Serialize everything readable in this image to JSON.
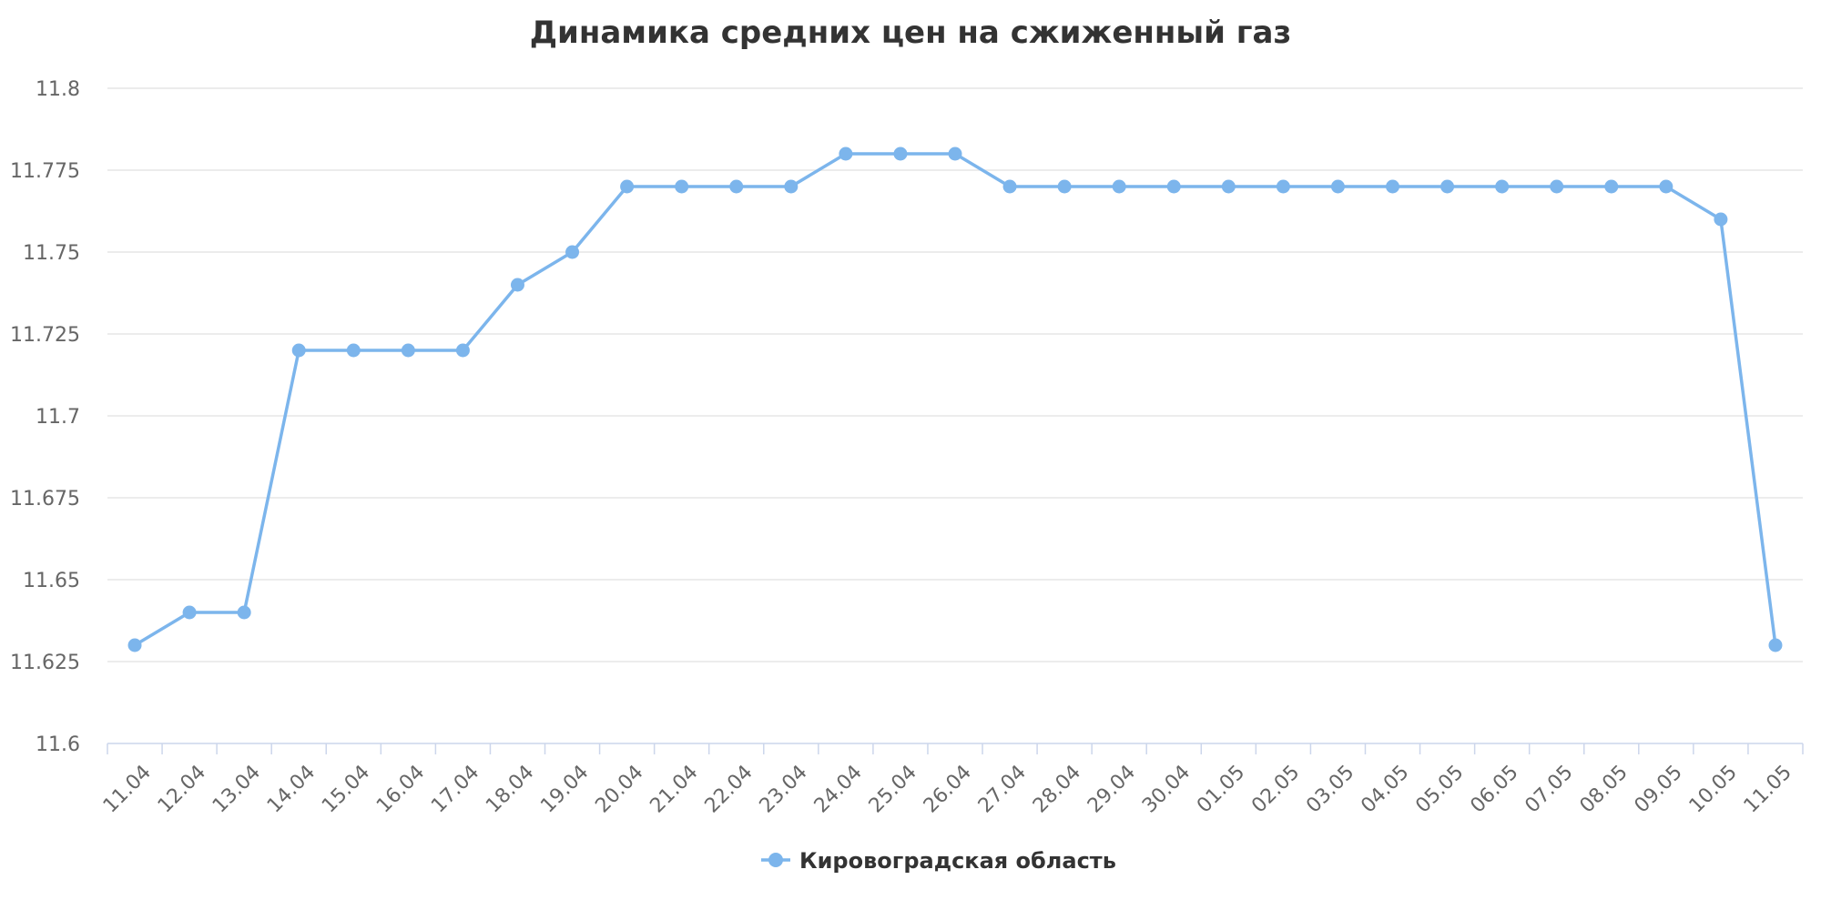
{
  "chart_data": {
    "type": "line",
    "title": "Динамика средних цен на сжиженный газ",
    "xlabel": "",
    "ylabel": "",
    "ylim": [
      11.6,
      11.8
    ],
    "yticks": [
      "11.6",
      "11.625",
      "11.65",
      "11.675",
      "11.7",
      "11.725",
      "11.75",
      "11.775",
      "11.8"
    ],
    "grid": true,
    "legend_position": "bottom-center",
    "categories": [
      "11.04",
      "12.04",
      "13.04",
      "14.04",
      "15.04",
      "16.04",
      "17.04",
      "18.04",
      "19.04",
      "20.04",
      "21.04",
      "22.04",
      "23.04",
      "24.04",
      "25.04",
      "26.04",
      "27.04",
      "28.04",
      "29.04",
      "30.04",
      "01.05",
      "02.05",
      "03.05",
      "04.05",
      "05.05",
      "06.05",
      "07.05",
      "08.05",
      "09.05",
      "10.05",
      "11.05"
    ],
    "series": [
      {
        "name": "Кировоградская область",
        "color": "#7cb5ec",
        "values": [
          11.63,
          11.64,
          11.64,
          11.72,
          11.72,
          11.72,
          11.72,
          11.74,
          11.75,
          11.77,
          11.77,
          11.77,
          11.77,
          11.78,
          11.78,
          11.78,
          11.77,
          11.77,
          11.77,
          11.77,
          11.77,
          11.77,
          11.77,
          11.77,
          11.77,
          11.77,
          11.77,
          11.77,
          11.77,
          11.76,
          11.63
        ]
      }
    ]
  }
}
